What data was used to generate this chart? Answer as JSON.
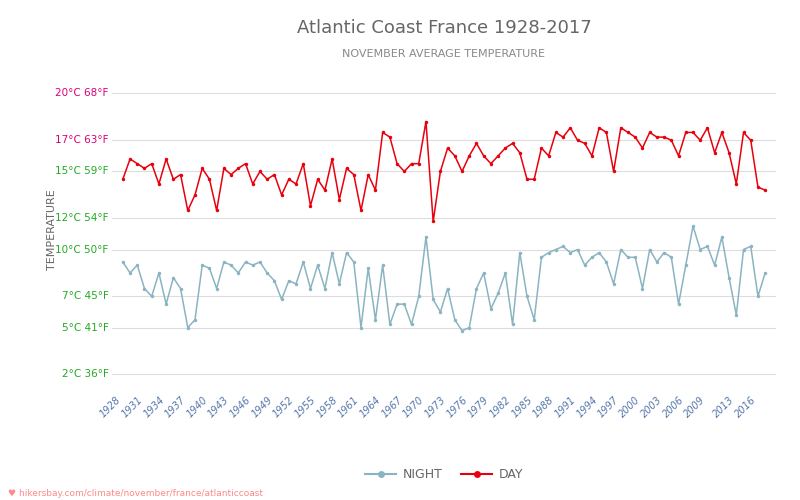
{
  "title": "Atlantic Coast France 1928-2017",
  "subtitle": "NOVEMBER AVERAGE TEMPERATURE",
  "ylabel": "TEMPERATURE",
  "watermark": "♥ hikersbay.com/climate/november/france/atlanticcoast",
  "years": [
    1928,
    1929,
    1930,
    1931,
    1932,
    1933,
    1934,
    1935,
    1936,
    1937,
    1938,
    1939,
    1940,
    1941,
    1942,
    1943,
    1944,
    1945,
    1946,
    1947,
    1948,
    1949,
    1950,
    1951,
    1952,
    1953,
    1954,
    1955,
    1956,
    1957,
    1958,
    1959,
    1960,
    1961,
    1962,
    1963,
    1964,
    1965,
    1966,
    1967,
    1968,
    1969,
    1970,
    1971,
    1972,
    1973,
    1974,
    1975,
    1976,
    1977,
    1978,
    1979,
    1980,
    1981,
    1982,
    1983,
    1984,
    1985,
    1986,
    1987,
    1988,
    1989,
    1990,
    1991,
    1992,
    1993,
    1994,
    1995,
    1996,
    1997,
    1998,
    1999,
    2000,
    2001,
    2002,
    2003,
    2004,
    2005,
    2006,
    2007,
    2008,
    2009,
    2010,
    2011,
    2012,
    2013,
    2014,
    2015,
    2016,
    2017
  ],
  "day_temps": [
    14.5,
    15.8,
    15.5,
    15.2,
    15.5,
    14.2,
    15.8,
    14.5,
    14.8,
    12.5,
    13.5,
    15.2,
    14.5,
    12.5,
    15.2,
    14.8,
    15.2,
    15.5,
    14.2,
    15.0,
    14.5,
    14.8,
    13.5,
    14.5,
    14.2,
    15.5,
    12.8,
    14.5,
    13.8,
    15.8,
    13.2,
    15.2,
    14.8,
    12.5,
    14.8,
    13.8,
    17.5,
    17.2,
    15.5,
    15.0,
    15.5,
    15.5,
    18.2,
    11.8,
    15.0,
    16.5,
    16.0,
    15.0,
    16.0,
    16.8,
    16.0,
    15.5,
    16.0,
    16.5,
    16.8,
    16.2,
    14.5,
    14.5,
    16.5,
    16.0,
    17.5,
    17.2,
    17.8,
    17.0,
    16.8,
    16.0,
    17.8,
    17.5,
    15.0,
    17.8,
    17.5,
    17.2,
    16.5,
    17.5,
    17.2,
    17.2,
    17.0,
    16.0,
    17.5,
    17.5,
    17.0,
    17.8,
    16.2,
    17.5,
    16.2,
    14.2,
    17.5,
    17.0,
    14.0,
    13.8
  ],
  "night_temps": [
    9.2,
    8.5,
    9.0,
    7.5,
    7.0,
    8.5,
    6.5,
    8.2,
    7.5,
    5.0,
    5.5,
    9.0,
    8.8,
    7.5,
    9.2,
    9.0,
    8.5,
    9.2,
    9.0,
    9.2,
    8.5,
    8.0,
    6.8,
    8.0,
    7.8,
    9.2,
    7.5,
    9.0,
    7.5,
    9.8,
    7.8,
    9.8,
    9.2,
    5.0,
    8.8,
    5.5,
    9.0,
    5.2,
    6.5,
    6.5,
    5.2,
    7.0,
    10.8,
    6.8,
    6.0,
    7.5,
    5.5,
    4.8,
    5.0,
    7.5,
    8.5,
    6.2,
    7.2,
    8.5,
    5.2,
    9.8,
    7.0,
    5.5,
    9.5,
    9.8,
    10.0,
    10.2,
    9.8,
    10.0,
    9.0,
    9.5,
    9.8,
    9.2,
    7.8,
    10.0,
    9.5,
    9.5,
    7.5,
    10.0,
    9.2,
    9.8,
    9.5,
    6.5,
    9.0,
    11.5,
    10.0,
    10.2,
    9.0,
    10.8,
    8.2,
    5.8,
    10.0,
    10.2,
    7.0,
    8.5
  ],
  "day_color": "#e8000d",
  "night_color": "#8ab4c2",
  "title_color": "#666666",
  "subtitle_color": "#888888",
  "ylabel_color": "#666666",
  "tick_color_green": "#22aa22",
  "tick_color_pink": "#dd0077",
  "grid_color": "#dddddd",
  "background_color": "#ffffff",
  "yticks_c": [
    2,
    5,
    7,
    10,
    12,
    15,
    17,
    20
  ],
  "yticks_f": [
    36,
    41,
    45,
    50,
    54,
    59,
    63,
    68
  ],
  "xtick_years": [
    1928,
    1931,
    1934,
    1937,
    1940,
    1943,
    1946,
    1949,
    1952,
    1955,
    1958,
    1961,
    1964,
    1967,
    1970,
    1973,
    1976,
    1979,
    1982,
    1985,
    1988,
    1991,
    1994,
    1997,
    2000,
    2003,
    2006,
    2009,
    2013,
    2016
  ],
  "ylim": [
    1.0,
    21.5
  ],
  "xlim": [
    1926.5,
    2018.5
  ],
  "legend_night": "NIGHT",
  "legend_day": "DAY",
  "line_width": 1.1,
  "marker_size": 2.5
}
